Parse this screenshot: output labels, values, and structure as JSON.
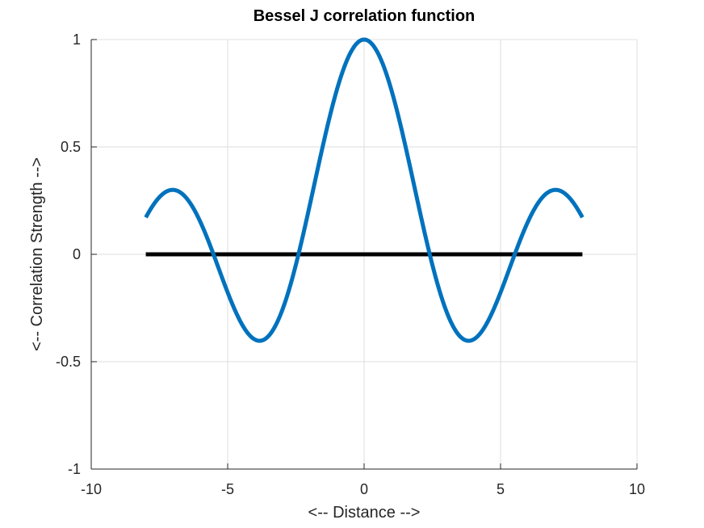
{
  "chart_data": {
    "type": "line",
    "title": "Bessel J correlation function",
    "xlabel": "<-- Distance -->",
    "ylabel": "<-- Correlation Strength -->",
    "xlim": [
      -10,
      10
    ],
    "ylim": [
      -1,
      1
    ],
    "xticks": [
      -10,
      -5,
      0,
      5,
      10
    ],
    "yticks": [
      -1,
      -0.5,
      0,
      0.5,
      1
    ],
    "xtick_labels": [
      "-10",
      "-5",
      "0",
      "5",
      "10"
    ],
    "ytick_labels": [
      "-1",
      "-0.5",
      "0",
      "0.5",
      "1"
    ],
    "grid": true,
    "series": [
      {
        "color": "#0072bd",
        "function": "besselj(0, x)",
        "x_range": [
          -8,
          8
        ],
        "x": [
          -8,
          -7,
          -6,
          -5,
          -4,
          -3,
          -2,
          -1,
          0,
          1,
          2,
          3,
          4,
          5,
          6,
          7,
          8
        ],
        "values": [
          0.172,
          0.3,
          0.151,
          -0.178,
          -0.397,
          -0.26,
          0.224,
          0.765,
          1.0,
          0.765,
          0.224,
          -0.26,
          -0.397,
          -0.178,
          0.151,
          0.3,
          0.172
        ]
      },
      {
        "color": "#000000",
        "x": [
          -8,
          8
        ],
        "values": [
          0,
          0
        ]
      }
    ]
  }
}
